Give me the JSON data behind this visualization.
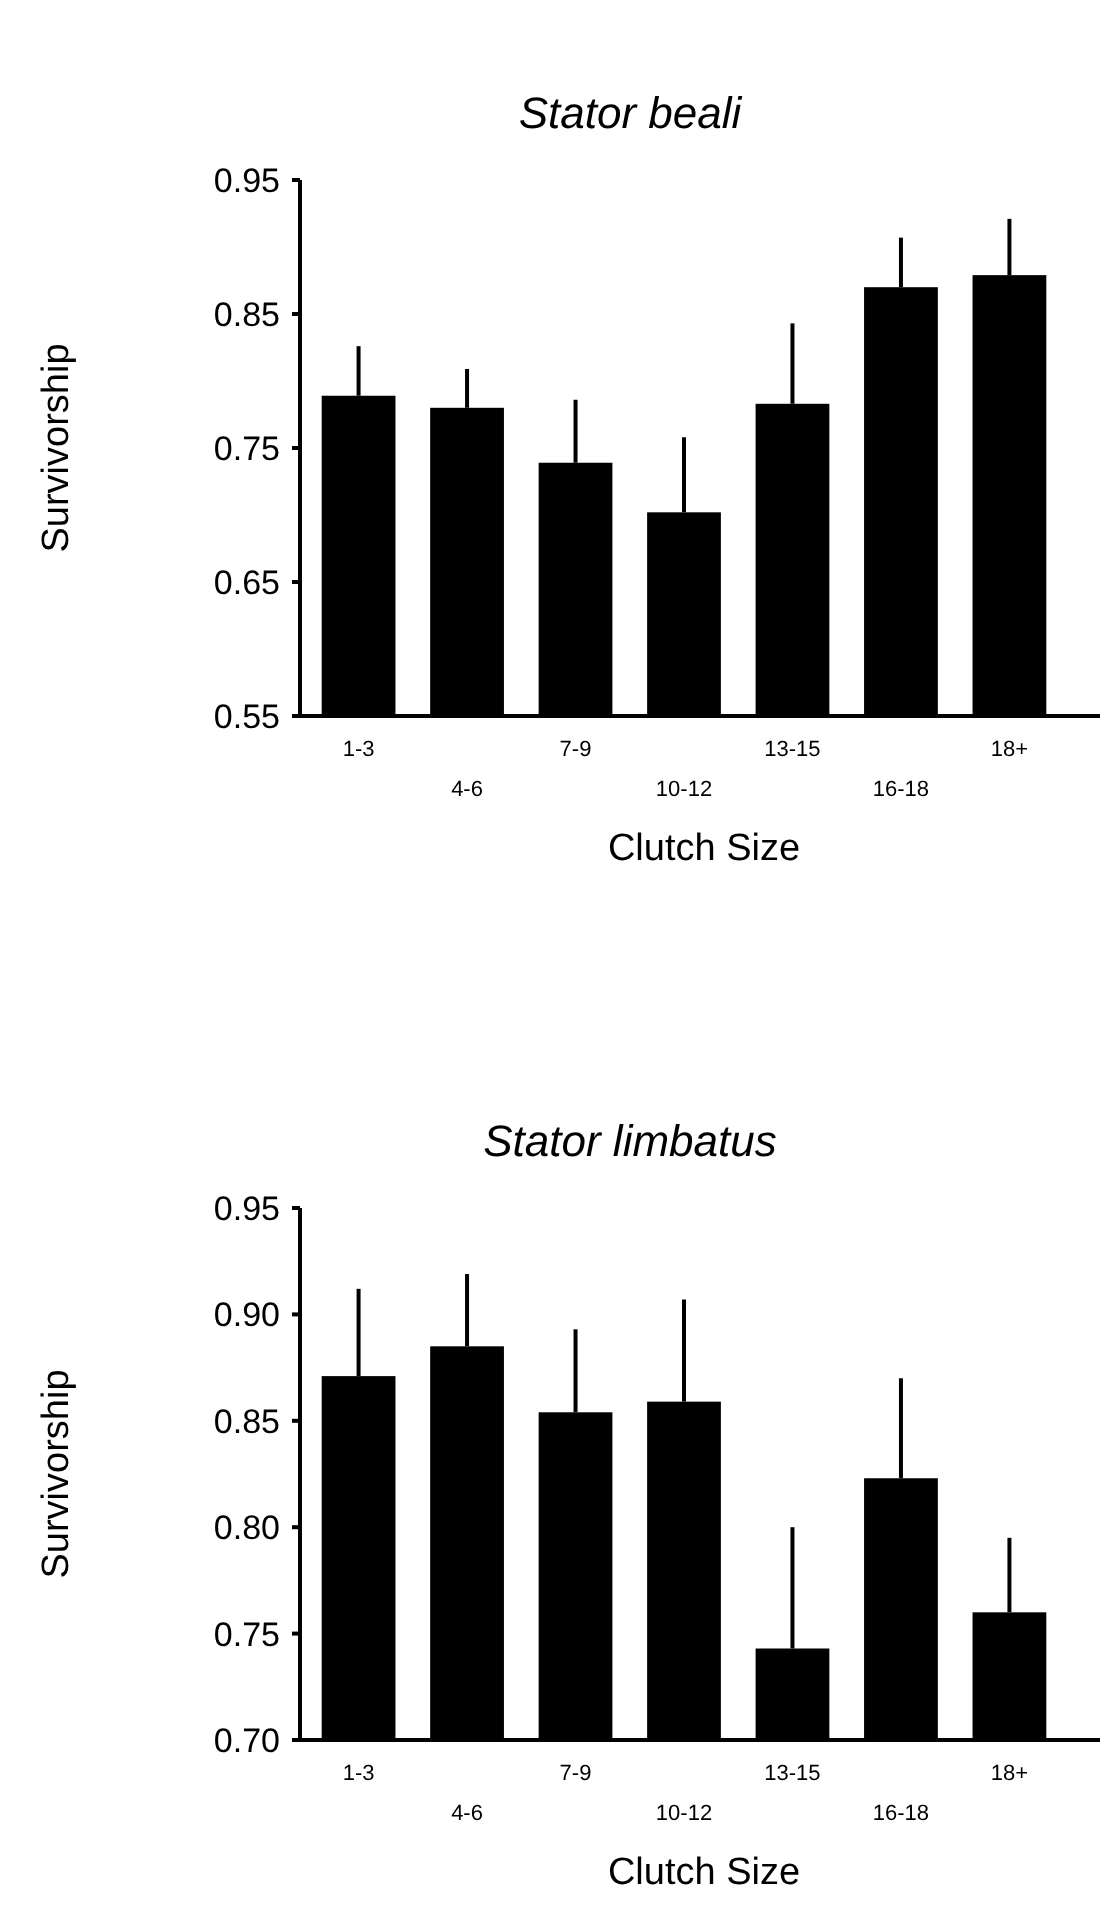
{
  "chart_data": [
    {
      "type": "bar",
      "title": "Stator beali",
      "xlabel": "Clutch Size",
      "ylabel": "Survivorship",
      "categories": [
        "1-3",
        "4-6",
        "7-9",
        "10-12",
        "13-15",
        "16-18",
        "18+"
      ],
      "color": "#000000",
      "values": [
        0.789,
        0.78,
        0.739,
        0.702,
        0.783,
        0.87,
        0.879
      ],
      "errors": [
        [
          0.789,
          0.826
        ],
        [
          0.78,
          0.809
        ],
        [
          0.739,
          0.786
        ],
        [
          0.702,
          0.758
        ],
        [
          0.783,
          0.843
        ],
        [
          0.87,
          0.907
        ],
        [
          0.879,
          0.921
        ]
      ],
      "ylim": [
        0.55,
        0.95
      ],
      "yticks": [
        0.55,
        0.65,
        0.75,
        0.85,
        0.95
      ],
      "grid": false
    },
    {
      "type": "bar",
      "title": "Stator limbatus",
      "xlabel": "Clutch Size",
      "ylabel": "Survivorship",
      "categories": [
        "1-3",
        "4-6",
        "7-9",
        "10-12",
        "13-15",
        "16-18",
        "18+"
      ],
      "color": "#000000",
      "values": [
        0.871,
        0.885,
        0.854,
        0.859,
        0.743,
        0.823,
        0.76
      ],
      "errors": [
        [
          0.871,
          0.912
        ],
        [
          0.885,
          0.919
        ],
        [
          0.854,
          0.893
        ],
        [
          0.859,
          0.907
        ],
        [
          0.743,
          0.8
        ],
        [
          0.823,
          0.87
        ],
        [
          0.76,
          0.795
        ]
      ],
      "ylim": [
        0.7,
        0.95
      ],
      "yticks": [
        {
          "value": 0.7,
          "label": "0.70"
        },
        0.75,
        {
          "value": 0.8,
          "label": "0.80"
        },
        0.85,
        {
          "value": 0.9,
          "label": "0.90"
        },
        0.95
      ],
      "grid": false
    }
  ]
}
